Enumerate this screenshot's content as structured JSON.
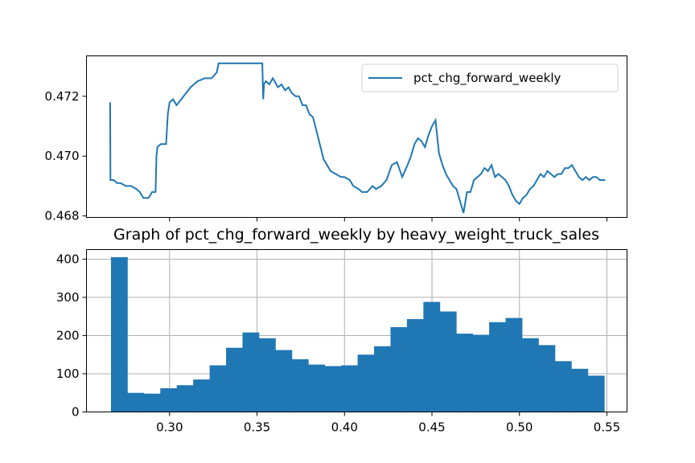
{
  "colors": {
    "series": "#1f77b4",
    "grid": "#b0b0b0",
    "axis": "#000000"
  },
  "chart_data": [
    {
      "type": "line",
      "title": "",
      "xlabel": "",
      "ylabel": "",
      "xlim": [
        0.2525,
        0.5615
      ],
      "ylim": [
        0.46795,
        0.47335
      ],
      "yticks": [
        0.468,
        0.47,
        0.472
      ],
      "ytick_labels": [
        "0.468",
        "0.470",
        "0.472"
      ],
      "xticks": [
        0.3,
        0.35,
        0.4,
        0.45,
        0.5,
        0.55
      ],
      "grid": false,
      "legend": {
        "position": "top-right",
        "entries": [
          "pct_chg_forward_weekly"
        ]
      },
      "series": [
        {
          "name": "pct_chg_forward_weekly",
          "x": [
            0.266,
            0.2662,
            0.2665,
            0.268,
            0.27,
            0.272,
            0.275,
            0.278,
            0.281,
            0.283,
            0.285,
            0.288,
            0.29,
            0.292,
            0.2925,
            0.293,
            0.295,
            0.298,
            0.299,
            0.3,
            0.302,
            0.304,
            0.308,
            0.312,
            0.314,
            0.316,
            0.32,
            0.324,
            0.327,
            0.328,
            0.33,
            0.332,
            0.334,
            0.337,
            0.34,
            0.342,
            0.345,
            0.348,
            0.35,
            0.353,
            0.3535,
            0.354,
            0.355,
            0.357,
            0.359,
            0.36,
            0.362,
            0.364,
            0.366,
            0.368,
            0.37,
            0.372,
            0.374,
            0.376,
            0.378,
            0.38,
            0.382,
            0.385,
            0.388,
            0.392,
            0.395,
            0.398,
            0.4,
            0.403,
            0.405,
            0.408,
            0.41,
            0.413,
            0.416,
            0.418,
            0.421,
            0.424,
            0.427,
            0.43,
            0.433,
            0.436,
            0.438,
            0.44,
            0.442,
            0.444,
            0.446,
            0.448,
            0.45,
            0.452,
            0.454,
            0.456,
            0.458,
            0.46,
            0.462,
            0.464,
            0.466,
            0.468,
            0.47,
            0.472,
            0.474,
            0.476,
            0.478,
            0.48,
            0.482,
            0.484,
            0.486,
            0.488,
            0.49,
            0.492,
            0.494,
            0.496,
            0.498,
            0.5,
            0.502,
            0.504,
            0.506,
            0.508,
            0.51,
            0.512,
            0.514,
            0.516,
            0.518,
            0.52,
            0.522,
            0.524,
            0.526,
            0.528,
            0.53,
            0.532,
            0.534,
            0.536,
            0.538,
            0.54,
            0.542,
            0.544,
            0.546,
            0.548,
            0.549
          ],
          "y": [
            0.4718,
            0.4692,
            0.4692,
            0.4692,
            0.4691,
            0.4691,
            0.469,
            0.469,
            0.4689,
            0.4688,
            0.4686,
            0.4686,
            0.4688,
            0.4688,
            0.47,
            0.4703,
            0.4704,
            0.4704,
            0.4714,
            0.4718,
            0.4719,
            0.4717,
            0.472,
            0.4723,
            0.4724,
            0.4725,
            0.4726,
            0.4726,
            0.4728,
            0.4731,
            0.4731,
            0.4731,
            0.4731,
            0.4731,
            0.4731,
            0.4731,
            0.4731,
            0.4731,
            0.4731,
            0.4731,
            0.4719,
            0.4724,
            0.4725,
            0.4724,
            0.4726,
            0.4725,
            0.4723,
            0.4724,
            0.4722,
            0.4723,
            0.4721,
            0.472,
            0.472,
            0.4717,
            0.4717,
            0.4714,
            0.4713,
            0.4706,
            0.4699,
            0.4695,
            0.4694,
            0.4693,
            0.4693,
            0.4692,
            0.469,
            0.4689,
            0.4688,
            0.4688,
            0.469,
            0.4689,
            0.469,
            0.4692,
            0.4697,
            0.4698,
            0.4693,
            0.4697,
            0.47,
            0.4704,
            0.4706,
            0.4705,
            0.4703,
            0.4707,
            0.471,
            0.4712,
            0.4701,
            0.4697,
            0.4694,
            0.4692,
            0.469,
            0.4689,
            0.4685,
            0.4681,
            0.4688,
            0.4688,
            0.4692,
            0.4693,
            0.4694,
            0.4696,
            0.4695,
            0.4697,
            0.4693,
            0.4694,
            0.4693,
            0.4692,
            0.469,
            0.4687,
            0.4685,
            0.4684,
            0.4686,
            0.4687,
            0.4689,
            0.469,
            0.4692,
            0.4694,
            0.4693,
            0.4695,
            0.4694,
            0.4693,
            0.4694,
            0.4694,
            0.4696,
            0.4696,
            0.4697,
            0.4695,
            0.4693,
            0.4692,
            0.4693,
            0.4692,
            0.4693,
            0.4693,
            0.4692,
            0.4692,
            0.4692
          ]
        }
      ]
    },
    {
      "type": "bar",
      "title": "Graph of pct_chg_forward_weekly by heavy_weight_truck_sales",
      "xlabel": "",
      "ylabel": "",
      "xlim": [
        0.2525,
        0.5615
      ],
      "ylim": [
        0,
        425
      ],
      "xticks": [
        0.3,
        0.35,
        0.4,
        0.45,
        0.5,
        0.55
      ],
      "xtick_labels": [
        "0.30",
        "0.35",
        "0.40",
        "0.45",
        "0.50",
        "0.55"
      ],
      "yticks": [
        0,
        100,
        200,
        300,
        400
      ],
      "ytick_labels": [
        "0",
        "100",
        "200",
        "300",
        "400"
      ],
      "grid": true,
      "bin_start": 0.2665,
      "bin_width": 0.0094,
      "values": [
        405,
        50,
        48,
        62,
        70,
        85,
        122,
        168,
        208,
        193,
        162,
        138,
        124,
        120,
        122,
        150,
        172,
        222,
        243,
        288,
        263,
        205,
        202,
        235,
        246,
        193,
        175,
        133,
        113,
        95
      ]
    }
  ]
}
